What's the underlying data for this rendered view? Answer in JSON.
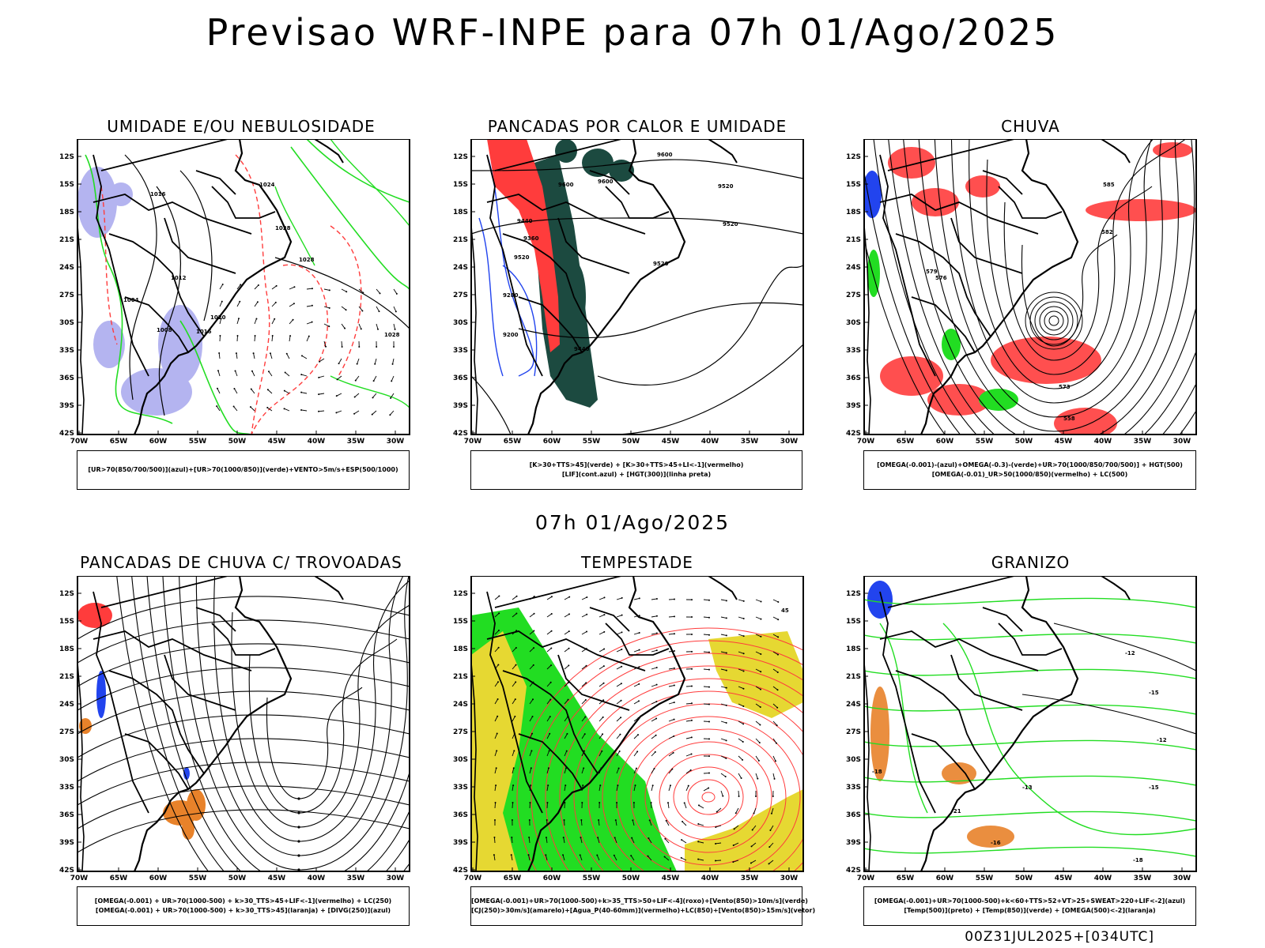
{
  "title": "Previsao WRF-INPE  para 07h 01/Ago/2025",
  "mid_title": "07h 01/Ago/2025",
  "footer": "00Z31JUL2025+[034UTC]",
  "axes": {
    "lat_labels": [
      "12S",
      "15S",
      "18S",
      "21S",
      "24S",
      "27S",
      "30S",
      "33S",
      "36S",
      "39S",
      "42S"
    ],
    "lon_labels": [
      "70W",
      "65W",
      "60W",
      "55W",
      "50W",
      "45W",
      "40W",
      "35W",
      "30W"
    ]
  },
  "colors": {
    "red": "#ff3c3c",
    "green": "#22dd22",
    "blue": "#2244ee",
    "lavender": "#b4b4f0",
    "dark_teal": "#1c4a40",
    "yellow": "#e6d832",
    "orange": "#e8822a"
  },
  "panels": [
    {
      "title": "UMIDADE E/OU NEBULOSIDADE",
      "legend": [
        "[UR>70(850/700/500)](azul)+[UR>70(1000/850)](verde)+VENTO>5m/s+ESP(500/1000)"
      ],
      "contour_labels": [
        "1016",
        "1012",
        "1024",
        "1028",
        "1028",
        "1020",
        "1016",
        "1008",
        "1004",
        "1028"
      ]
    },
    {
      "title": "PANCADAS POR CALOR E UMIDADE",
      "legend": [
        "[K>30+TTS>45](verde) + [K>30+TTS>45+LI<-1](vermelho)",
        "[LIF](cont.azul) + [HGT(300)](linha preta)"
      ],
      "contour_labels": [
        "9600",
        "9600",
        "9600",
        "9520",
        "9520",
        "9440",
        "9360",
        "9520",
        "9520",
        "9280",
        "9200",
        "9440"
      ]
    },
    {
      "title": "CHUVA",
      "legend": [
        "[OMEGA(-0.001)-(azul)+OMEGA(-0.3)-(verde)+UR>70(1000/850/700/500)] + HGT(500)",
        "[OMEGA(-0.01)_UR>50(1000/850)(vermelho) + LC(500)"
      ],
      "contour_labels": [
        "585",
        "582",
        "579",
        "576",
        "573",
        "558"
      ]
    },
    {
      "title": "PANCADAS DE CHUVA C/ TROVOADAS",
      "legend": [
        "[OMEGA(-0.001) + UR>70(1000-500) + k>30_TTS>45+LIF<-1](vermelho) + LC(250)",
        "[OMEGA(-0.001) + UR>70(1000-500) + k>30_TTS>45](laranja) + [DIVG(250)](azul)"
      ],
      "contour_labels": []
    },
    {
      "title": "TEMPESTADE",
      "legend": [
        "[OMEGA(-0.001)+UR>70(1000-500)+k>35_TTS>50+LIF<-4](roxo)+[Vento(850)>10m/s](verde)",
        "[CJ(250)>30m/s](amarelo)+[Agua_P(40-60mm)](vermelho)+LC(850)+[Vento(850)>15m/s](vetor)"
      ],
      "contour_labels": [
        "45"
      ]
    },
    {
      "title": "GRANIZO",
      "legend": [
        "[OMEGA(-0.001)+UR>70(1000-500)+k<60+TTS>52+VT>25+SWEAT>220+LIF<-2](azul)",
        "[Temp(500)](preto) + [Temp(850)](verde) + [OMEGA(500)<-2](laranja)"
      ],
      "contour_labels": [
        "-12",
        "-15",
        "-18",
        "-21",
        "-15",
        "-12",
        "-13",
        "-16",
        "-18"
      ]
    }
  ]
}
